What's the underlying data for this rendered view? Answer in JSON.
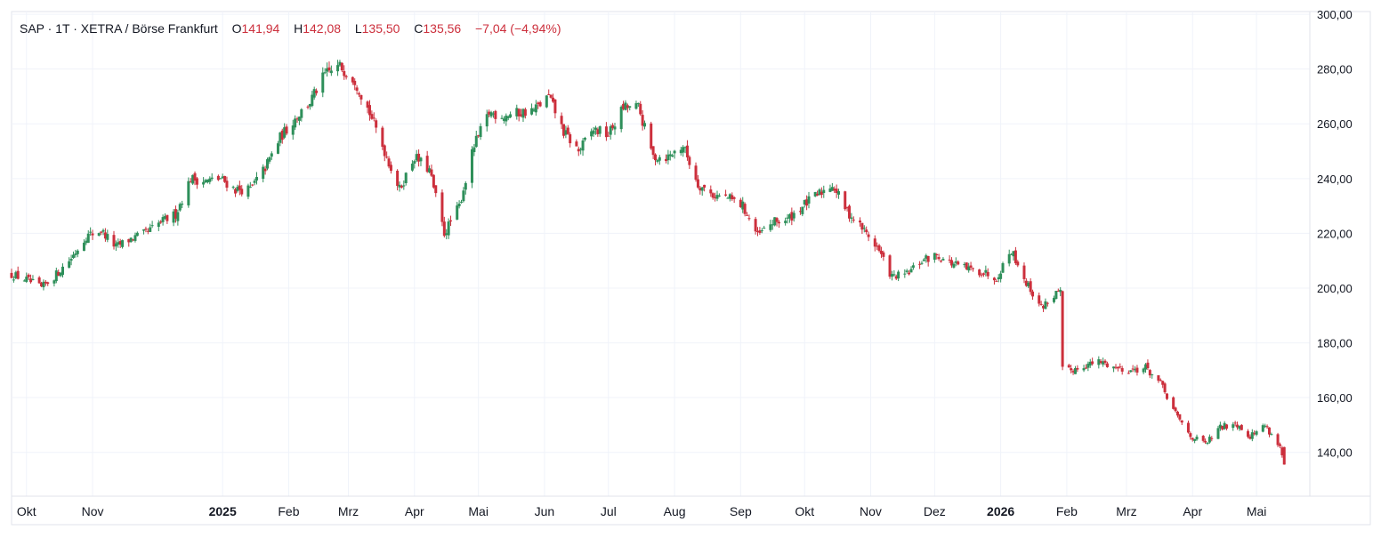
{
  "legend": {
    "symbol": "SAP",
    "interval": "1T",
    "exchange": "XETRA / Börse Frankfurt",
    "separator": "·",
    "open_label": "O",
    "open": "141,94",
    "high_label": "H",
    "high": "142,08",
    "low_label": "L",
    "low": "135,50",
    "close_label": "C",
    "close": "135,56",
    "change": "−7,04 (−4,94%)"
  },
  "colors": {
    "up": "#2e8f5a",
    "down": "#cc2f3c",
    "grid": "#f0f3fa",
    "axis_text": "#131722",
    "border": "#e0e3eb"
  },
  "chart_data": {
    "type": "candlestick",
    "y_axis": {
      "min": 124,
      "max": 301,
      "side": "right",
      "ticks": [
        140,
        160,
        180,
        200,
        220,
        240,
        260,
        280,
        300
      ],
      "tick_labels": [
        "140,00",
        "160,00",
        "180,00",
        "200,00",
        "220,00",
        "240,00",
        "260,00",
        "280,00",
        "300,00"
      ]
    },
    "x_axis": {
      "start": "2024-09-24",
      "end": "2026-05-26",
      "ticks": [
        {
          "date": "2024-10-01",
          "label": "Okt",
          "bold": false
        },
        {
          "date": "2024-11-01",
          "label": "Nov",
          "bold": false
        },
        {
          "date": "2025-01-01",
          "label": "2025",
          "bold": true
        },
        {
          "date": "2025-02-01",
          "label": "Feb",
          "bold": false
        },
        {
          "date": "2025-03-01",
          "label": "Mrz",
          "bold": false
        },
        {
          "date": "2025-04-01",
          "label": "Apr",
          "bold": false
        },
        {
          "date": "2025-05-01",
          "label": "Mai",
          "bold": false
        },
        {
          "date": "2025-06-01",
          "label": "Jun",
          "bold": false
        },
        {
          "date": "2025-07-01",
          "label": "Jul",
          "bold": false
        },
        {
          "date": "2025-08-01",
          "label": "Aug",
          "bold": false
        },
        {
          "date": "2025-09-01",
          "label": "Sep",
          "bold": false
        },
        {
          "date": "2025-10-01",
          "label": "Okt",
          "bold": false
        },
        {
          "date": "2025-11-01",
          "label": "Nov",
          "bold": false
        },
        {
          "date": "2025-12-01",
          "label": "Dez",
          "bold": false
        },
        {
          "date": "2026-01-01",
          "label": "2026",
          "bold": true
        },
        {
          "date": "2026-02-01",
          "label": "Feb",
          "bold": false
        },
        {
          "date": "2026-03-01",
          "label": "Mrz",
          "bold": false
        },
        {
          "date": "2026-04-01",
          "label": "Apr",
          "bold": false
        },
        {
          "date": "2026-05-01",
          "label": "Mai",
          "bold": false
        }
      ]
    },
    "closes": [
      {
        "d": "2024-09-24",
        "c": 205
      },
      {
        "d": "2024-10-01",
        "c": 203
      },
      {
        "d": "2024-10-08",
        "c": 200
      },
      {
        "d": "2024-10-15",
        "c": 205
      },
      {
        "d": "2024-10-22",
        "c": 211
      },
      {
        "d": "2024-10-29",
        "c": 219
      },
      {
        "d": "2024-11-05",
        "c": 221
      },
      {
        "d": "2024-11-12",
        "c": 215
      },
      {
        "d": "2024-11-19",
        "c": 218
      },
      {
        "d": "2024-11-26",
        "c": 220
      },
      {
        "d": "2024-12-03",
        "c": 224
      },
      {
        "d": "2024-12-10",
        "c": 227
      },
      {
        "d": "2024-12-17",
        "c": 240
      },
      {
        "d": "2024-12-24",
        "c": 239
      },
      {
        "d": "2024-12-31",
        "c": 240
      },
      {
        "d": "2025-01-07",
        "c": 236
      },
      {
        "d": "2025-01-14",
        "c": 236
      },
      {
        "d": "2025-01-21",
        "c": 244
      },
      {
        "d": "2025-01-28",
        "c": 255
      },
      {
        "d": "2025-02-04",
        "c": 262
      },
      {
        "d": "2025-02-11",
        "c": 268
      },
      {
        "d": "2025-02-18",
        "c": 278
      },
      {
        "d": "2025-02-25",
        "c": 281
      },
      {
        "d": "2025-03-04",
        "c": 276
      },
      {
        "d": "2025-03-11",
        "c": 264
      },
      {
        "d": "2025-03-18",
        "c": 250
      },
      {
        "d": "2025-03-25",
        "c": 236
      },
      {
        "d": "2025-04-01",
        "c": 248
      },
      {
        "d": "2025-04-08",
        "c": 243
      },
      {
        "d": "2025-04-15",
        "c": 220
      },
      {
        "d": "2025-04-22",
        "c": 230
      },
      {
        "d": "2025-04-29",
        "c": 252
      },
      {
        "d": "2025-05-06",
        "c": 264
      },
      {
        "d": "2025-05-13",
        "c": 263
      },
      {
        "d": "2025-05-20",
        "c": 264
      },
      {
        "d": "2025-05-27",
        "c": 265
      },
      {
        "d": "2025-06-03",
        "c": 270
      },
      {
        "d": "2025-06-10",
        "c": 257
      },
      {
        "d": "2025-06-17",
        "c": 250
      },
      {
        "d": "2025-06-24",
        "c": 258
      },
      {
        "d": "2025-07-01",
        "c": 256
      },
      {
        "d": "2025-07-08",
        "c": 266
      },
      {
        "d": "2025-07-15",
        "c": 266
      },
      {
        "d": "2025-07-22",
        "c": 248
      },
      {
        "d": "2025-07-29",
        "c": 248
      },
      {
        "d": "2025-08-05",
        "c": 252
      },
      {
        "d": "2025-08-12",
        "c": 238
      },
      {
        "d": "2025-08-19",
        "c": 234
      },
      {
        "d": "2025-08-26",
        "c": 233
      },
      {
        "d": "2025-09-02",
        "c": 230
      },
      {
        "d": "2025-09-09",
        "c": 219
      },
      {
        "d": "2025-09-16",
        "c": 224
      },
      {
        "d": "2025-09-23",
        "c": 225
      },
      {
        "d": "2025-09-30",
        "c": 230
      },
      {
        "d": "2025-10-07",
        "c": 234
      },
      {
        "d": "2025-10-14",
        "c": 238
      },
      {
        "d": "2025-10-21",
        "c": 228
      },
      {
        "d": "2025-10-28",
        "c": 222
      },
      {
        "d": "2025-11-04",
        "c": 215
      },
      {
        "d": "2025-11-11",
        "c": 204
      },
      {
        "d": "2025-11-18",
        "c": 205
      },
      {
        "d": "2025-11-25",
        "c": 210
      },
      {
        "d": "2025-12-02",
        "c": 212
      },
      {
        "d": "2025-12-09",
        "c": 209
      },
      {
        "d": "2025-12-16",
        "c": 207
      },
      {
        "d": "2025-12-23",
        "c": 206
      },
      {
        "d": "2025-12-30",
        "c": 204
      },
      {
        "d": "2026-01-06",
        "c": 214
      },
      {
        "d": "2026-01-13",
        "c": 202
      },
      {
        "d": "2026-01-20",
        "c": 193
      },
      {
        "d": "2026-01-27",
        "c": 198
      },
      {
        "d": "2026-02-03",
        "c": 170
      },
      {
        "d": "2026-02-10",
        "c": 172
      },
      {
        "d": "2026-02-17",
        "c": 173
      },
      {
        "d": "2026-02-24",
        "c": 171
      },
      {
        "d": "2026-03-03",
        "c": 170
      },
      {
        "d": "2026-03-10",
        "c": 171
      },
      {
        "d": "2026-03-17",
        "c": 165
      },
      {
        "d": "2026-03-24",
        "c": 154
      },
      {
        "d": "2026-03-31",
        "c": 146
      },
      {
        "d": "2026-04-07",
        "c": 143
      },
      {
        "d": "2026-04-14",
        "c": 149
      },
      {
        "d": "2026-04-21",
        "c": 151
      },
      {
        "d": "2026-04-28",
        "c": 146
      },
      {
        "d": "2026-05-05",
        "c": 150
      },
      {
        "d": "2026-05-12",
        "c": 142
      },
      {
        "d": "2026-05-14",
        "c": 135.56
      }
    ],
    "last_candle": {
      "date": "2026-05-14",
      "open": 141.94,
      "high": 142.08,
      "low": 135.5,
      "close": 135.56
    },
    "gap_after": "2026-01-29"
  }
}
